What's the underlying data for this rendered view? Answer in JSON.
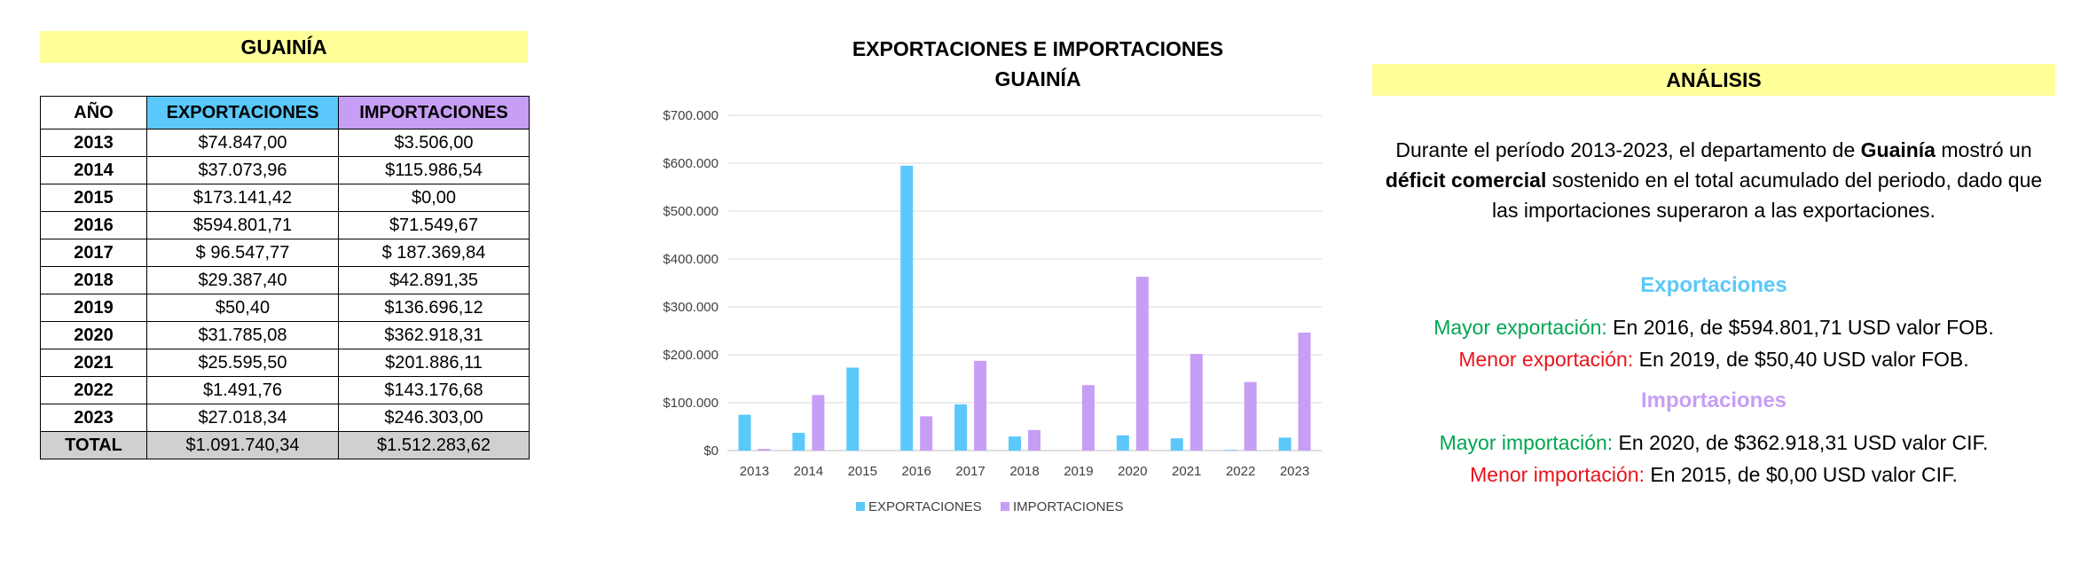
{
  "table": {
    "title": "GUAINÍA",
    "headers": {
      "year": "AÑO",
      "exports": "EXPORTACIONES",
      "imports": "IMPORTACIONES"
    },
    "rows": [
      {
        "year": "2013",
        "exports": "$74.847,00",
        "imports": "$3.506,00"
      },
      {
        "year": "2014",
        "exports": "$37.073,96",
        "imports": "$115.986,54"
      },
      {
        "year": "2015",
        "exports": "$173.141,42",
        "imports": "$0,00"
      },
      {
        "year": "2016",
        "exports": "$594.801,71",
        "imports": "$71.549,67"
      },
      {
        "year": "2017",
        "exports": "$ 96.547,77",
        "imports": "$ 187.369,84"
      },
      {
        "year": "2018",
        "exports": "$29.387,40",
        "imports": "$42.891,35"
      },
      {
        "year": "2019",
        "exports": "$50,40",
        "imports": "$136.696,12"
      },
      {
        "year": "2020",
        "exports": "$31.785,08",
        "imports": "$362.918,31"
      },
      {
        "year": "2021",
        "exports": "$25.595,50",
        "imports": "$201.886,11"
      },
      {
        "year": "2022",
        "exports": "$1.491,76",
        "imports": "$143.176,68"
      },
      {
        "year": "2023",
        "exports": "$27.018,34",
        "imports": "$246.303,00"
      }
    ],
    "total": {
      "label": "TOTAL",
      "exports": "$1.091.740,34",
      "imports": "$1.512.283,62"
    },
    "colors": {
      "header_exports": "#5ac8fa",
      "header_imports": "#c79ef5",
      "total_bg": "#d0d0d0",
      "title_bg": "#ffff99"
    }
  },
  "chart_data": {
    "type": "bar",
    "title": "EXPORTACIONES E IMPORTACIONES",
    "subtitle": "GUAINÍA",
    "categories": [
      "2013",
      "2014",
      "2015",
      "2016",
      "2017",
      "2018",
      "2019",
      "2020",
      "2021",
      "2022",
      "2023"
    ],
    "series": [
      {
        "name": "EXPORTACIONES",
        "color": "#5ac8fa",
        "values": [
          74847.0,
          37073.96,
          173141.42,
          594801.71,
          96547.77,
          29387.4,
          50.4,
          31785.08,
          25595.5,
          1491.76,
          27018.34
        ]
      },
      {
        "name": "IMPORTACIONES",
        "color": "#c79ef5",
        "values": [
          3506.0,
          115986.54,
          0.0,
          71549.67,
          187369.84,
          42891.35,
          136696.12,
          362918.31,
          201886.11,
          143176.68,
          246303.0
        ]
      }
    ],
    "yticks": [
      0,
      100000,
      200000,
      300000,
      400000,
      500000,
      600000,
      700000
    ],
    "ytick_labels": [
      "$0",
      "$100.000",
      "$200.000",
      "$300.000",
      "$400.000",
      "$500.000",
      "$600.000",
      "$700.000"
    ],
    "ylim": [
      0,
      700000
    ],
    "grid": true,
    "legend_position": "bottom"
  },
  "analysis": {
    "title": "ANÁLISIS",
    "p1_a": "Durante el período 2013-2023, el departamento de ",
    "p1_b": "Guainía",
    "p1_c": " mostró un ",
    "p1_d": "déficit comercial",
    "p1_e": " sostenido en el total acumulado del periodo, dado que las importaciones superaron a las exportaciones.",
    "exports_heading": "Exportaciones",
    "max_export_label": "Mayor exportación:",
    "max_export_text": " En 2016, de $594.801,71 USD valor FOB.",
    "min_export_label": "Menor exportación:",
    "min_export_text": " En 2019, de $50,40 USD valor FOB.",
    "imports_heading": "Importaciones",
    "max_import_label": "Mayor importación:",
    "max_import_text": " En 2020, de $362.918,31 USD valor CIF.",
    "min_import_label": "Menor importación:",
    "min_import_text": " En 2015, de $0,00 USD valor CIF.",
    "colors": {
      "exports_heading": "#5ac8fa",
      "imports_heading": "#c79ef5",
      "max_label": "#00a651",
      "min_label": "#e8141b"
    }
  }
}
